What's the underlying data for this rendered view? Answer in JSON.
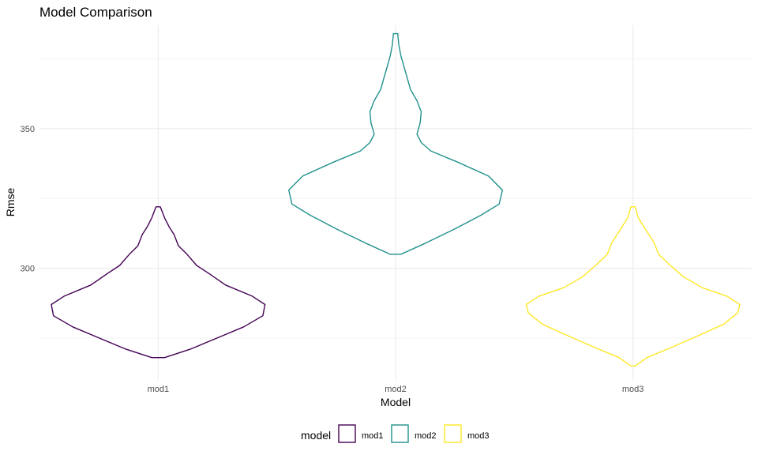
{
  "chart_data": {
    "type": "violin",
    "title": "Model Comparison",
    "xlabel": "Model",
    "ylabel": "Rmse",
    "categories": [
      "mod1",
      "mod2",
      "mod3"
    ],
    "ylim": [
      260,
      387
    ],
    "y_ticks": [
      300,
      350
    ],
    "grid": true,
    "legend": {
      "title": "model",
      "position": "bottom",
      "entries": [
        "mod1",
        "mod2",
        "mod3"
      ]
    },
    "colors": {
      "mod1": "#440154",
      "mod2": "#21908C",
      "mod3": "#FDE725"
    },
    "series": [
      {
        "name": "mod1",
        "min": 268,
        "max": 322,
        "profile": [
          [
            268,
            0.06
          ],
          [
            271,
            0.3
          ],
          [
            275,
            0.55
          ],
          [
            279,
            0.8
          ],
          [
            283,
            0.98
          ],
          [
            287,
            1.0
          ],
          [
            290,
            0.88
          ],
          [
            294,
            0.63
          ],
          [
            298,
            0.48
          ],
          [
            301,
            0.36
          ],
          [
            305,
            0.27
          ],
          [
            308,
            0.19
          ],
          [
            312,
            0.15
          ],
          [
            315,
            0.1
          ],
          [
            318,
            0.06
          ],
          [
            322,
            0.02
          ]
        ]
      },
      {
        "name": "mod2",
        "min": 305,
        "max": 384,
        "profile": [
          [
            305,
            0.05
          ],
          [
            309,
            0.28
          ],
          [
            314,
            0.55
          ],
          [
            319,
            0.8
          ],
          [
            323,
            0.97
          ],
          [
            328,
            1.0
          ],
          [
            333,
            0.87
          ],
          [
            338,
            0.58
          ],
          [
            342,
            0.33
          ],
          [
            345,
            0.24
          ],
          [
            348,
            0.2
          ],
          [
            352,
            0.23
          ],
          [
            356,
            0.24
          ],
          [
            360,
            0.2
          ],
          [
            364,
            0.14
          ],
          [
            368,
            0.11
          ],
          [
            372,
            0.08
          ],
          [
            376,
            0.05
          ],
          [
            380,
            0.03
          ],
          [
            384,
            0.02
          ]
        ]
      },
      {
        "name": "mod3",
        "min": 265,
        "max": 322,
        "profile": [
          [
            265,
            0.02
          ],
          [
            268,
            0.13
          ],
          [
            272,
            0.38
          ],
          [
            276,
            0.62
          ],
          [
            280,
            0.85
          ],
          [
            284,
            0.98
          ],
          [
            287,
            1.0
          ],
          [
            290,
            0.88
          ],
          [
            293,
            0.65
          ],
          [
            297,
            0.47
          ],
          [
            301,
            0.35
          ],
          [
            305,
            0.24
          ],
          [
            309,
            0.2
          ],
          [
            312,
            0.15
          ],
          [
            315,
            0.1
          ],
          [
            318,
            0.05
          ],
          [
            322,
            0.02
          ]
        ]
      }
    ]
  }
}
